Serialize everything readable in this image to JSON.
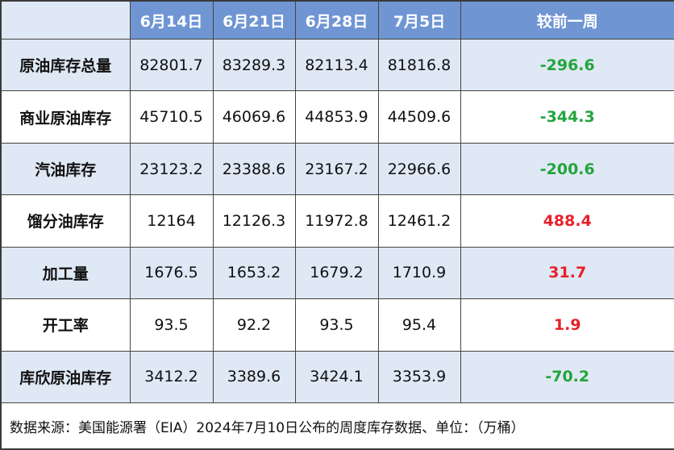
{
  "table": {
    "header": [
      "6月14日",
      "6月21日",
      "6月28日",
      "7月5日",
      "较前一周"
    ],
    "rows": [
      {
        "label": "原油库存总量",
        "values": [
          "82801.7",
          "83289.3",
          "82113.4",
          "81816.8"
        ],
        "change": "-296.6",
        "change_color": "#22a53c"
      },
      {
        "label": "商业原油库存",
        "values": [
          "45710.5",
          "46069.6",
          "44853.9",
          "44509.6"
        ],
        "change": "-344.3",
        "change_color": "#22a53c"
      },
      {
        "label": "汽油库存",
        "values": [
          "23123.2",
          "23388.6",
          "23167.2",
          "22966.6"
        ],
        "change": "-200.6",
        "change_color": "#22a53c"
      },
      {
        "label": "馏分油库存",
        "values": [
          "12164",
          "12126.3",
          "11972.8",
          "12461.2"
        ],
        "change": "488.4",
        "change_color": "#e8202a"
      },
      {
        "label": "加工量",
        "values": [
          "1676.5",
          "1653.2",
          "1679.2",
          "1710.9"
        ],
        "change": "31.7",
        "change_color": "#e8202a"
      },
      {
        "label": "开工率",
        "values": [
          "93.5",
          "92.2",
          "93.5",
          "95.4"
        ],
        "change": "1.9",
        "change_color": "#e8202a"
      },
      {
        "label": "库欣原油库存",
        "values": [
          "3412.2",
          "3389.6",
          "3424.1",
          "3353.9"
        ],
        "change": "-70.2",
        "change_color": "#22a53c"
      }
    ],
    "footer": "数据来源：美国能源署（EIA）2024年7月10日公布的周度库存数据、单位：（万桶）"
  }
}
